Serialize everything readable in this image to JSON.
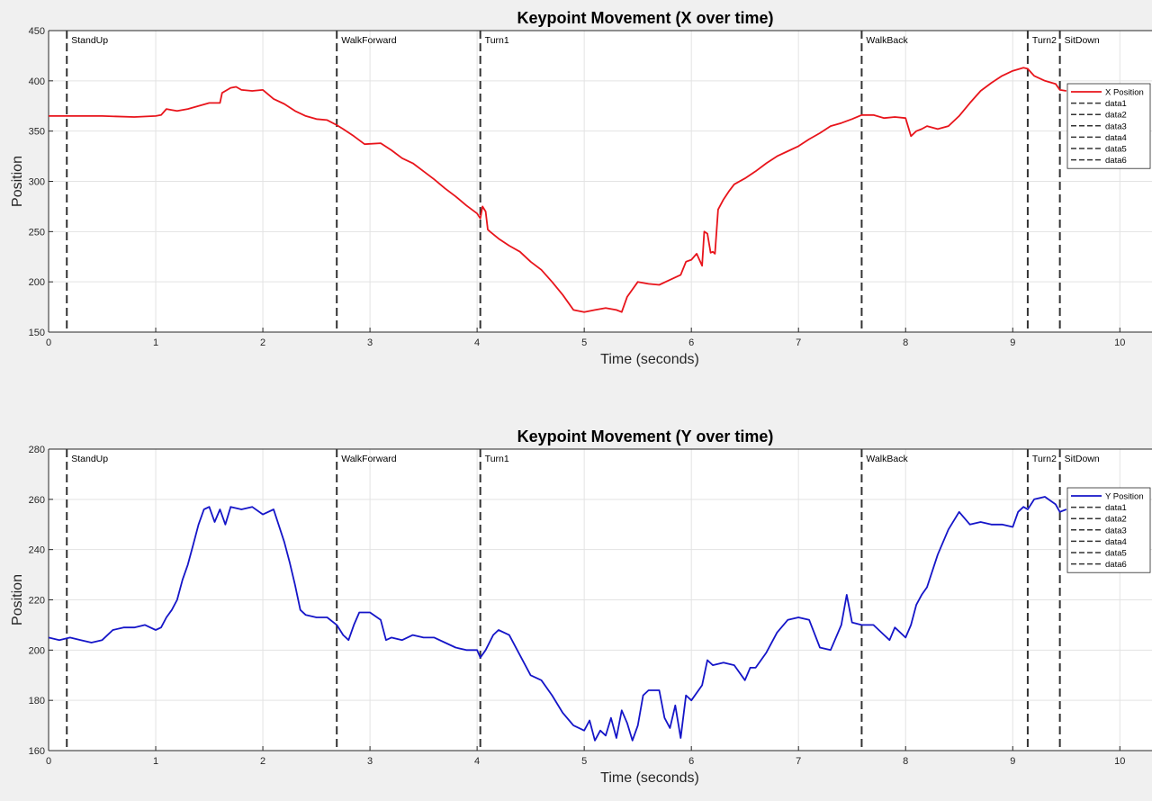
{
  "chart_data": [
    {
      "type": "line",
      "title": "Keypoint Movement (X over time)",
      "xlabel": "Time (seconds)",
      "ylabel": "Position",
      "xlim": [
        0,
        10.3
      ],
      "ylim": [
        150,
        450
      ],
      "xticks": [
        0,
        1,
        2,
        3,
        4,
        5,
        6,
        7,
        8,
        9,
        10
      ],
      "yticks": [
        150,
        200,
        250,
        300,
        350,
        400,
        450
      ],
      "grid": true,
      "legend_position": "top-right",
      "colors": {
        "series": "#e8141b",
        "events": "#333333"
      },
      "events": [
        {
          "label": "StandUp",
          "x": 0.17
        },
        {
          "label": "WalkForward",
          "x": 2.69
        },
        {
          "label": "Turn1",
          "x": 4.03
        },
        {
          "label": "WalkBack",
          "x": 7.59
        },
        {
          "label": "Turn2",
          "x": 9.14
        },
        {
          "label": "SitDown",
          "x": 9.44
        }
      ],
      "legend": [
        "X Position",
        "data1",
        "data2",
        "data3",
        "data4",
        "data5",
        "data6"
      ],
      "series": [
        {
          "name": "X Position",
          "x": [
            0,
            0.2,
            0.5,
            0.8,
            1.0,
            1.05,
            1.1,
            1.15,
            1.2,
            1.3,
            1.4,
            1.5,
            1.6,
            1.62,
            1.7,
            1.75,
            1.8,
            1.9,
            2.0,
            2.1,
            2.2,
            2.3,
            2.4,
            2.5,
            2.6,
            2.69,
            2.75,
            2.85,
            2.95,
            3.1,
            3.2,
            3.3,
            3.4,
            3.5,
            3.6,
            3.7,
            3.8,
            3.9,
            4.0,
            4.03,
            4.05,
            4.08,
            4.1,
            4.12,
            4.2,
            4.3,
            4.4,
            4.5,
            4.6,
            4.7,
            4.8,
            4.9,
            5.0,
            5.1,
            5.2,
            5.3,
            5.35,
            5.4,
            5.5,
            5.6,
            5.7,
            5.8,
            5.9,
            5.95,
            6.0,
            6.05,
            6.1,
            6.12,
            6.15,
            6.18,
            6.2,
            6.22,
            6.25,
            6.3,
            6.35,
            6.4,
            6.5,
            6.6,
            6.7,
            6.8,
            6.9,
            7.0,
            7.1,
            7.2,
            7.3,
            7.4,
            7.5,
            7.59,
            7.7,
            7.8,
            7.9,
            8.0,
            8.05,
            8.1,
            8.15,
            8.2,
            8.3,
            8.4,
            8.5,
            8.6,
            8.7,
            8.8,
            8.9,
            9.0,
            9.1,
            9.14,
            9.2,
            9.3,
            9.4,
            9.44,
            9.5
          ],
          "values": [
            365,
            365,
            365,
            364,
            365,
            366,
            372,
            371,
            370,
            372,
            375,
            378,
            378,
            388,
            393,
            394,
            391,
            390,
            391,
            382,
            377,
            370,
            365,
            362,
            361,
            356,
            352,
            345,
            337,
            338,
            331,
            323,
            318,
            310,
            302,
            293,
            285,
            276,
            268,
            263,
            275,
            270,
            252,
            250,
            243,
            236,
            230,
            220,
            212,
            200,
            187,
            172,
            170,
            172,
            174,
            172,
            170,
            185,
            200,
            198,
            197,
            202,
            207,
            220,
            222,
            228,
            216,
            250,
            248,
            229,
            230,
            228,
            272,
            282,
            290,
            297,
            303,
            310,
            318,
            325,
            330,
            335,
            342,
            348,
            355,
            358,
            362,
            366,
            366,
            363,
            364,
            363,
            345,
            350,
            352,
            355,
            352,
            355,
            365,
            378,
            390,
            398,
            405,
            410,
            413,
            412,
            405,
            400,
            397,
            391,
            390
          ]
        }
      ]
    },
    {
      "type": "line",
      "title": "Keypoint Movement (Y over time)",
      "xlabel": "Time (seconds)",
      "ylabel": "Position",
      "xlim": [
        0,
        10.3
      ],
      "ylim": [
        160,
        280
      ],
      "xticks": [
        0,
        1,
        2,
        3,
        4,
        5,
        6,
        7,
        8,
        9,
        10
      ],
      "yticks": [
        160,
        180,
        200,
        220,
        240,
        260,
        280
      ],
      "grid": true,
      "legend_position": "top-right",
      "colors": {
        "series": "#1515c8",
        "events": "#333333"
      },
      "events": [
        {
          "label": "StandUp",
          "x": 0.17
        },
        {
          "label": "WalkForward",
          "x": 2.69
        },
        {
          "label": "Turn1",
          "x": 4.03
        },
        {
          "label": "WalkBack",
          "x": 7.59
        },
        {
          "label": "Turn2",
          "x": 9.14
        },
        {
          "label": "SitDown",
          "x": 9.44
        }
      ],
      "legend": [
        "Y Position",
        "data1",
        "data2",
        "data3",
        "data4",
        "data5",
        "data6"
      ],
      "series": [
        {
          "name": "Y Position",
          "x": [
            0,
            0.1,
            0.2,
            0.3,
            0.4,
            0.5,
            0.6,
            0.7,
            0.8,
            0.9,
            1.0,
            1.05,
            1.1,
            1.15,
            1.2,
            1.25,
            1.3,
            1.35,
            1.4,
            1.45,
            1.5,
            1.55,
            1.6,
            1.65,
            1.7,
            1.8,
            1.9,
            2.0,
            2.1,
            2.2,
            2.25,
            2.3,
            2.35,
            2.4,
            2.5,
            2.6,
            2.69,
            2.75,
            2.8,
            2.85,
            2.9,
            3.0,
            3.1,
            3.15,
            3.2,
            3.3,
            3.4,
            3.5,
            3.6,
            3.7,
            3.8,
            3.9,
            4.0,
            4.03,
            4.08,
            4.15,
            4.2,
            4.3,
            4.4,
            4.5,
            4.6,
            4.7,
            4.8,
            4.9,
            5.0,
            5.05,
            5.1,
            5.15,
            5.2,
            5.25,
            5.3,
            5.35,
            5.4,
            5.45,
            5.5,
            5.55,
            5.6,
            5.7,
            5.75,
            5.8,
            5.85,
            5.9,
            5.95,
            6.0,
            6.1,
            6.15,
            6.2,
            6.3,
            6.4,
            6.5,
            6.55,
            6.6,
            6.7,
            6.8,
            6.9,
            7.0,
            7.1,
            7.2,
            7.3,
            7.4,
            7.45,
            7.5,
            7.59,
            7.7,
            7.8,
            7.85,
            7.9,
            8.0,
            8.05,
            8.1,
            8.15,
            8.2,
            8.3,
            8.4,
            8.5,
            8.6,
            8.7,
            8.8,
            8.9,
            9.0,
            9.05,
            9.1,
            9.14,
            9.2,
            9.3,
            9.4,
            9.44,
            9.5
          ],
          "values": [
            205,
            204,
            205,
            204,
            203,
            204,
            208,
            209,
            209,
            210,
            208,
            209,
            213,
            216,
            220,
            228,
            234,
            242,
            250,
            256,
            257,
            251,
            256,
            250,
            257,
            256,
            257,
            254,
            256,
            243,
            235,
            226,
            216,
            214,
            213,
            213,
            210,
            206,
            204,
            210,
            215,
            215,
            212,
            204,
            205,
            204,
            206,
            205,
            205,
            203,
            201,
            200,
            200,
            197,
            200,
            206,
            208,
            206,
            198,
            190,
            188,
            182,
            175,
            170,
            168,
            172,
            164,
            168,
            166,
            173,
            165,
            176,
            171,
            164,
            170,
            182,
            184,
            184,
            173,
            169,
            178,
            165,
            182,
            180,
            186,
            196,
            194,
            195,
            194,
            188,
            193,
            193,
            199,
            207,
            212,
            213,
            212,
            201,
            200,
            210,
            222,
            211,
            210,
            210,
            206,
            204,
            209,
            205,
            210,
            218,
            222,
            225,
            238,
            248,
            255,
            250,
            251,
            250,
            250,
            249,
            255,
            257,
            256,
            260,
            261,
            258,
            255,
            256
          ]
        }
      ]
    }
  ]
}
